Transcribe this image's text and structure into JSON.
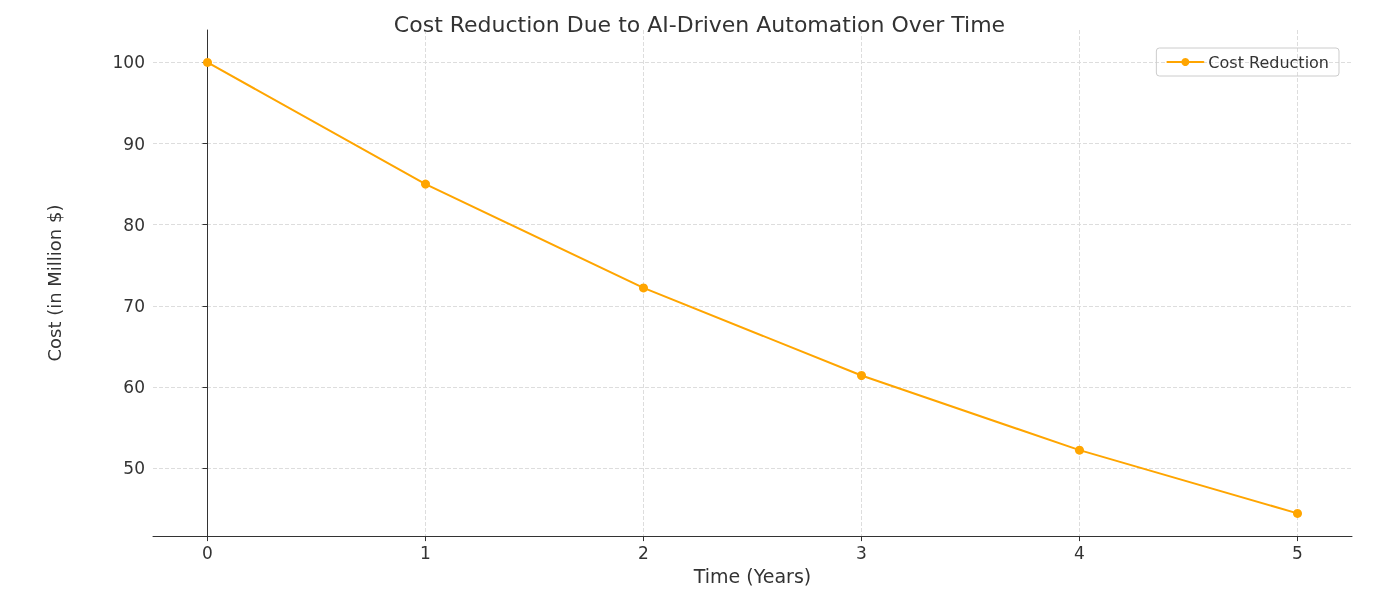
{
  "chart_data": {
    "type": "line",
    "title": "Cost Reduction Due to AI-Driven Automation Over Time",
    "xlabel": "Time (Years)",
    "ylabel": "Cost (in Million $)",
    "x": [
      0,
      1,
      2,
      3,
      4,
      5
    ],
    "series": [
      {
        "name": "Cost Reduction",
        "color": "#ffa500",
        "values": [
          100,
          85,
          72.2,
          61.4,
          52.2,
          44.4
        ]
      }
    ],
    "xlim": [
      -0.25,
      5.25
    ],
    "xticks": [
      0,
      1,
      2,
      3,
      4,
      5
    ],
    "ylim": [
      41.6,
      104
    ],
    "yticks": [
      50,
      60,
      70,
      80,
      90,
      100
    ],
    "grid": true,
    "legend": "top right",
    "marker": "circle",
    "line_style": "solid"
  }
}
